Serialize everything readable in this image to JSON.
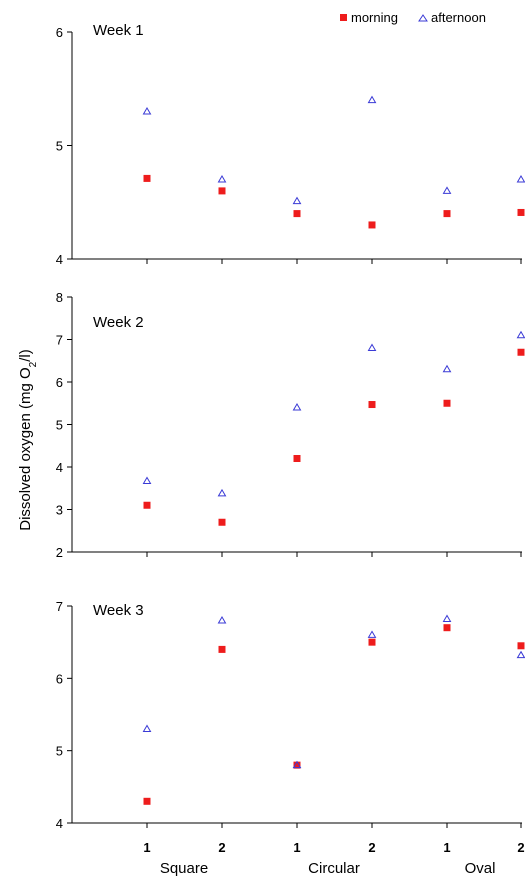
{
  "colors": {
    "morning": "#ee1c1c",
    "afternoon": "#3a3ad6",
    "axis": "#000000"
  },
  "chart_data": [
    {
      "type": "scatter",
      "title": "Week 1",
      "ylim": [
        4,
        6
      ],
      "yticks": [
        4,
        5,
        6
      ],
      "categories": [
        "1",
        "2",
        "1",
        "2",
        "1",
        "2"
      ],
      "groups": [
        "Square",
        "Circular",
        "Oval"
      ],
      "ylabel": "Dissolved oxygen (mg O2/l)",
      "legend": {
        "position": "top-right"
      },
      "series": [
        {
          "name": "morning",
          "marker": "square",
          "values": [
            4.71,
            4.6,
            4.4,
            4.3,
            4.4,
            4.41
          ]
        },
        {
          "name": "afternoon",
          "marker": "open-triangle",
          "values": [
            5.3,
            4.7,
            4.51,
            5.4,
            4.6,
            4.7
          ]
        }
      ]
    },
    {
      "type": "scatter",
      "title": "Week 2",
      "ylim": [
        2,
        8
      ],
      "yticks": [
        2,
        3,
        4,
        5,
        6,
        7,
        8
      ],
      "categories": [
        "1",
        "2",
        "1",
        "2",
        "1",
        "2"
      ],
      "series": [
        {
          "name": "morning",
          "marker": "square",
          "values": [
            3.1,
            2.7,
            4.2,
            5.47,
            5.5,
            6.7
          ]
        },
        {
          "name": "afternoon",
          "marker": "open-triangle",
          "values": [
            3.67,
            3.38,
            5.4,
            6.8,
            6.3,
            7.1
          ]
        }
      ]
    },
    {
      "type": "scatter",
      "title": "Week 3",
      "ylim": [
        4,
        7
      ],
      "yticks": [
        4,
        5,
        6,
        7
      ],
      "categories": [
        "1",
        "2",
        "1",
        "2",
        "1",
        "2"
      ],
      "series": [
        {
          "name": "morning",
          "marker": "square",
          "values": [
            4.3,
            6.4,
            4.8,
            6.5,
            6.7,
            6.45
          ]
        },
        {
          "name": "afternoon",
          "marker": "open-triangle",
          "values": [
            5.3,
            6.8,
            4.8,
            6.6,
            6.82,
            6.32
          ]
        }
      ]
    }
  ]
}
